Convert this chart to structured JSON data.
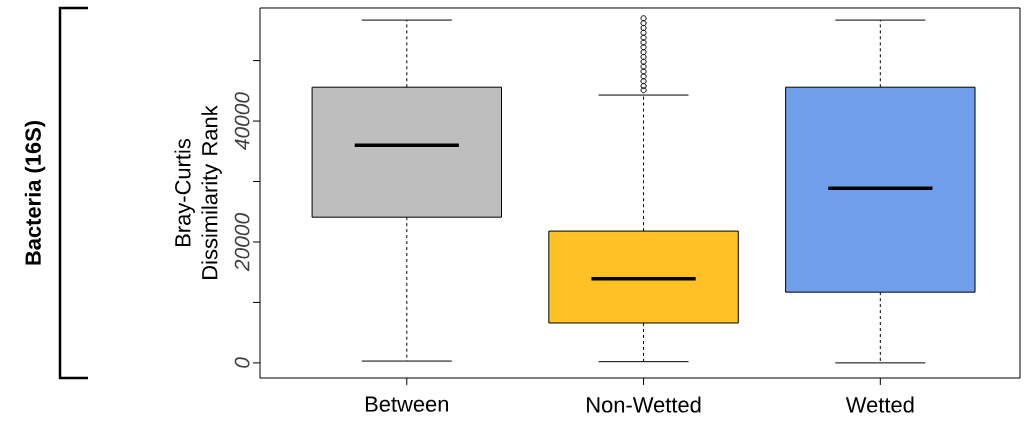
{
  "chart_data": {
    "type": "box",
    "annotations": [
      "Bacteria (16S)"
    ],
    "ylabel": "Bray-Curtis Dissimilarity Rank",
    "categories": [
      "Between",
      "Non-Wetted",
      "Wetted"
    ],
    "colors": [
      "#bebebe",
      "#ffc125",
      "#6f9eea"
    ],
    "boxes": [
      {
        "low": 300,
        "q1": 24100,
        "median": 36000,
        "q3": 45600,
        "high": 56700
      },
      {
        "low": 200,
        "q1": 6600,
        "median": 13900,
        "q3": 21800,
        "high": 44300,
        "outliers": [
          45100,
          45800,
          46600,
          47400,
          48200,
          49000,
          49800,
          50600,
          51400,
          52200,
          53000,
          53800,
          54600,
          55400,
          56200,
          57000
        ]
      },
      {
        "low": 0,
        "q1": 11700,
        "median": 28900,
        "q3": 45600,
        "high": 56700
      }
    ],
    "ylim": [
      -2500,
      58700
    ],
    "yticks": [
      0,
      {
        "value": 10000,
        "label": null
      },
      20000,
      {
        "value": 30000,
        "label": null
      },
      40000,
      {
        "value": 50000,
        "label": null
      }
    ]
  }
}
